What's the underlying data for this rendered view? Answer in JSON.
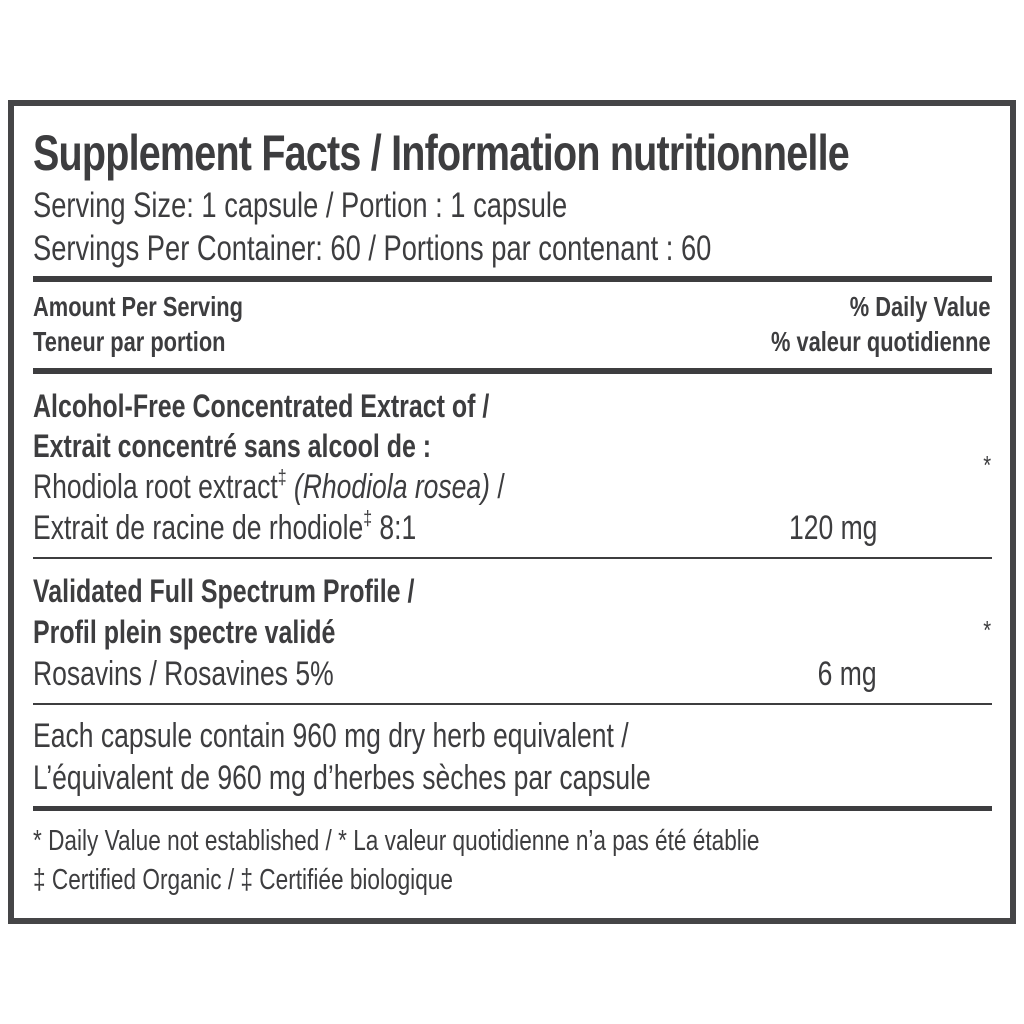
{
  "title": "Supplement Facts / Information nutritionnelle",
  "serving_size": "Serving Size: 1 capsule / Portion : 1 capsule",
  "servings_per_container": "Servings Per Container: 60 / Portions par contenant : 60",
  "header": {
    "amount_en": "Amount Per Serving",
    "amount_fr": "Teneur par portion",
    "dv_en": "% Daily Value",
    "dv_fr": "% valeur quotidienne"
  },
  "ingredients": [
    {
      "heading_en": "Alcohol-Free Concentrated Extract of /",
      "heading_fr": "Extrait concentré sans alcool de :",
      "line1_a": "Rhodiola root extract",
      "line1_mark": "‡",
      "line1_italic": "(Rhodiola rosea)",
      "line1_b": " /",
      "line2_a": "Extrait de racine de rhodiole",
      "line2_mark": "‡",
      "line2_b": " 8:1",
      "amount": "120 mg",
      "dv": "*"
    },
    {
      "heading_en": "Validated Full Spectrum Profile /",
      "heading_fr": "Profil plein spectre validé",
      "line1": "Rosavins / Rosavines 5%",
      "amount": "6 mg",
      "dv": "*"
    }
  ],
  "equivalent_en": "Each capsule contain 960 mg dry herb equivalent /",
  "equivalent_fr": "L’équivalent de 960 mg d’herbes sèches par capsule",
  "footnotes": [
    "* Daily Value not established / * La valeur quotidienne n’a pas été établie",
    "‡ Certified Organic / ‡ Certifiée biologique"
  ],
  "colors": {
    "text": "#3d3d3f",
    "border": "#454547"
  }
}
